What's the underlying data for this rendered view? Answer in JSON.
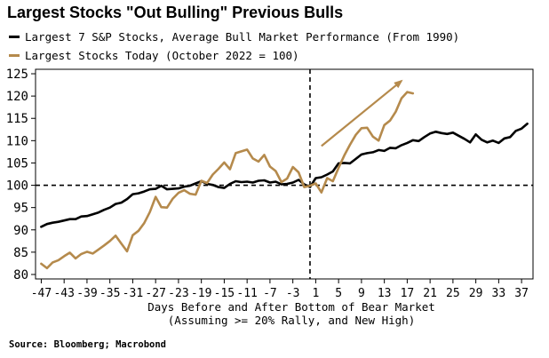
{
  "chart_data": {
    "type": "line",
    "title": "Largest Stocks \"Out Bulling\" Previous Bulls",
    "xlabel": [
      "Days Before and After Bottom of Bear Market",
      "(Assuming >= 20% Rally, and New High)"
    ],
    "ylabel": "",
    "xlim": [
      -48,
      39
    ],
    "ylim": [
      79,
      126
    ],
    "xticks": [
      -47,
      -43,
      -39,
      -35,
      -31,
      -27,
      -23,
      -19,
      -15,
      -11,
      -7,
      -3,
      1,
      5,
      9,
      13,
      17,
      21,
      25,
      29,
      33,
      37
    ],
    "yticks": [
      80,
      85,
      90,
      95,
      100,
      105,
      110,
      115,
      120,
      125
    ],
    "reference_lines": {
      "horizontal_y": 100,
      "vertical_x": 0
    },
    "grid": false,
    "legend": "top-left",
    "series": [
      {
        "name": "Largest 7 S&P Stocks, Average Bull Market Performance (From 1990)",
        "color": "#000000",
        "x": [
          -47,
          -46,
          -45,
          -44,
          -43,
          -42,
          -41,
          -40,
          -39,
          -38,
          -37,
          -36,
          -35,
          -34,
          -33,
          -32,
          -31,
          -30,
          -29,
          -28,
          -27,
          -26,
          -25,
          -24,
          -23,
          -22,
          -21,
          -20,
          -19,
          -18,
          -17,
          -16,
          -15,
          -14,
          -13,
          -12,
          -11,
          -10,
          -9,
          -8,
          -7,
          -6,
          -5,
          -4,
          -3,
          -2,
          -1,
          0,
          1,
          2,
          3,
          4,
          5,
          6,
          7,
          8,
          9,
          10,
          11,
          12,
          13,
          14,
          15,
          16,
          17,
          18,
          19,
          20,
          21,
          22,
          23,
          24,
          25,
          26,
          27,
          28,
          29,
          30,
          31,
          32,
          33,
          34,
          35,
          36,
          37,
          38
        ],
        "y": [
          90.7,
          91.3,
          91.6,
          91.8,
          92.1,
          92.4,
          92.4,
          93.0,
          93.1,
          93.5,
          93.9,
          94.5,
          95.0,
          95.8,
          96.1,
          96.9,
          98.0,
          98.2,
          98.6,
          99.1,
          99.2,
          99.9,
          99.1,
          99.2,
          99.3,
          99.7,
          99.9,
          100.4,
          100.9,
          100.3,
          100.1,
          99.6,
          99.4,
          100.3,
          100.9,
          100.7,
          100.8,
          100.6,
          101.0,
          101.1,
          100.6,
          100.8,
          100.2,
          100.3,
          100.6,
          101.2,
          100.2,
          99.6,
          101.6,
          101.8,
          102.4,
          103.1,
          104.9,
          105.0,
          104.9,
          105.9,
          106.9,
          107.2,
          107.4,
          107.9,
          107.7,
          108.4,
          108.3,
          109.0,
          109.5,
          110.1,
          109.9,
          110.8,
          111.6,
          112.0,
          111.7,
          111.5,
          111.8,
          111.1,
          110.4,
          109.6,
          111.4,
          110.2,
          109.6,
          110.0,
          109.5,
          110.5,
          110.8,
          112.2,
          112.7,
          113.8
        ]
      },
      {
        "name": "Largest Stocks Today (October 2022 = 100)",
        "color": "#b58a4c",
        "x": [
          -47,
          -46,
          -45,
          -44,
          -43,
          -42,
          -41,
          -40,
          -39,
          -38,
          -37,
          -36,
          -35,
          -34,
          -33,
          -32,
          -31,
          -30,
          -29,
          -28,
          -27,
          -26,
          -25,
          -24,
          -23,
          -22,
          -21,
          -20,
          -19,
          -18,
          -17,
          -16,
          -15,
          -14,
          -13,
          -12,
          -11,
          -10,
          -9,
          -8,
          -7,
          -6,
          -5,
          -4,
          -3,
          -2,
          -1,
          0,
          1,
          2,
          3,
          4,
          5,
          6,
          7,
          8,
          9,
          10,
          11,
          12,
          13,
          14,
          15,
          16,
          17,
          18
        ],
        "y": [
          82.4,
          81.4,
          82.7,
          83.2,
          84.1,
          84.9,
          83.6,
          84.6,
          85.1,
          84.7,
          85.6,
          86.5,
          87.5,
          88.7,
          86.9,
          85.2,
          88.8,
          89.8,
          91.5,
          94.0,
          97.4,
          95.1,
          95.0,
          97.0,
          98.3,
          98.9,
          98.1,
          97.9,
          101.0,
          100.5,
          102.4,
          103.7,
          105.1,
          103.6,
          107.2,
          107.6,
          108.0,
          106.0,
          105.3,
          106.8,
          104.2,
          103.2,
          100.7,
          101.5,
          104.1,
          102.9,
          99.6,
          99.9,
          100.4,
          98.4,
          101.6,
          100.9,
          103.9,
          106.7,
          109.1,
          111.3,
          112.8,
          112.9,
          110.9,
          110.0,
          113.5,
          114.5,
          116.5,
          119.5,
          120.9,
          120.6
        ]
      }
    ],
    "annotations": [
      {
        "type": "arrow",
        "color": "#b58a4c",
        "from": [
          2,
          108.8
        ],
        "to": [
          16,
          123.4
        ]
      }
    ]
  },
  "source": "Source: Bloomberg; Macrobond"
}
